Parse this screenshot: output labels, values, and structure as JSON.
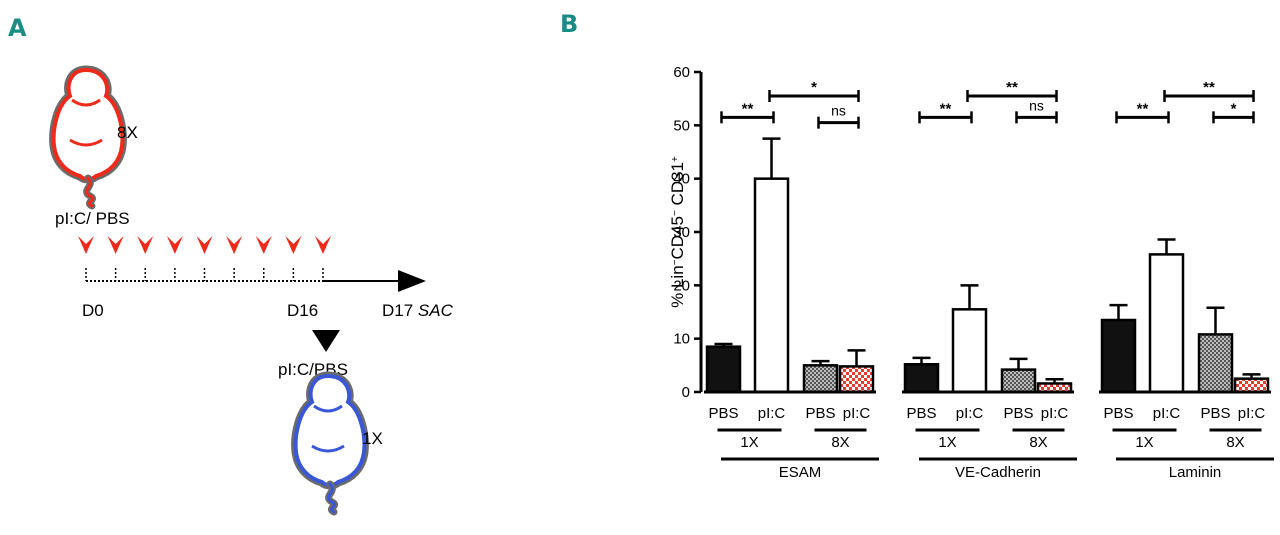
{
  "panels": {
    "a": "A",
    "b": "B"
  },
  "schematic": {
    "mouse_top_label": "8X",
    "mouse_bottom_label": "1X",
    "treatment_top": "pI:C/ PBS",
    "treatment_bottom": "pI:C/PBS",
    "day_start": "D0",
    "day_mid": "D16",
    "day_end": "D17",
    "day_end_note": "SAC",
    "injection_count": 9,
    "colors": {
      "mouse_top": "#ee2a1b",
      "mouse_bottom": "#3a57d6",
      "mouse_outline": "#6b6b6b",
      "arrow_red": "#ee2a1b"
    }
  },
  "chart_data": {
    "type": "bar",
    "ylabel_parts": [
      "% Lin",
      "−",
      "CD45",
      "−",
      " CD31",
      "+"
    ],
    "ylim": [
      0,
      60
    ],
    "yticks": [
      "0",
      "10",
      "20",
      "30",
      "40",
      "50",
      "60"
    ],
    "bar_labels": [
      "PBS",
      "pI:C",
      "PBS",
      "pI:C"
    ],
    "dose_labels": [
      "1X",
      "8X"
    ],
    "fills": [
      "#111111",
      "#ffffff",
      "#9a9a9a",
      "#e63b2e"
    ],
    "groups": [
      {
        "name": "ESAM",
        "values": [
          8.5,
          40,
          5,
          4.8
        ],
        "errors": [
          0.5,
          7.5,
          0.8,
          3
        ],
        "sig": [
          {
            "from": 0,
            "to": 1,
            "label": "**",
            "y": 51.5
          },
          {
            "from": 2,
            "to": 3,
            "label": "ns",
            "y": 50.5
          },
          {
            "from": 1,
            "to": 3,
            "label": "*",
            "y": 55.5
          }
        ]
      },
      {
        "name": "VE-Cadherin",
        "values": [
          5.2,
          15.5,
          4.2,
          1.6
        ],
        "errors": [
          1.2,
          4.5,
          2,
          0.8
        ],
        "sig": [
          {
            "from": 0,
            "to": 1,
            "label": "**",
            "y": 51.5
          },
          {
            "from": 2,
            "to": 3,
            "label": "ns",
            "y": 51.5
          },
          {
            "from": 1,
            "to": 3,
            "label": "**",
            "y": 55.5
          }
        ]
      },
      {
        "name": "Laminin",
        "values": [
          13.5,
          25.8,
          10.8,
          2.5
        ],
        "errors": [
          2.8,
          2.8,
          5,
          0.8
        ],
        "sig": [
          {
            "from": 0,
            "to": 1,
            "label": "**",
            "y": 51.5
          },
          {
            "from": 2,
            "to": 3,
            "label": "*",
            "y": 51.5
          },
          {
            "from": 1,
            "to": 3,
            "label": "**",
            "y": 55.5
          }
        ]
      }
    ]
  }
}
